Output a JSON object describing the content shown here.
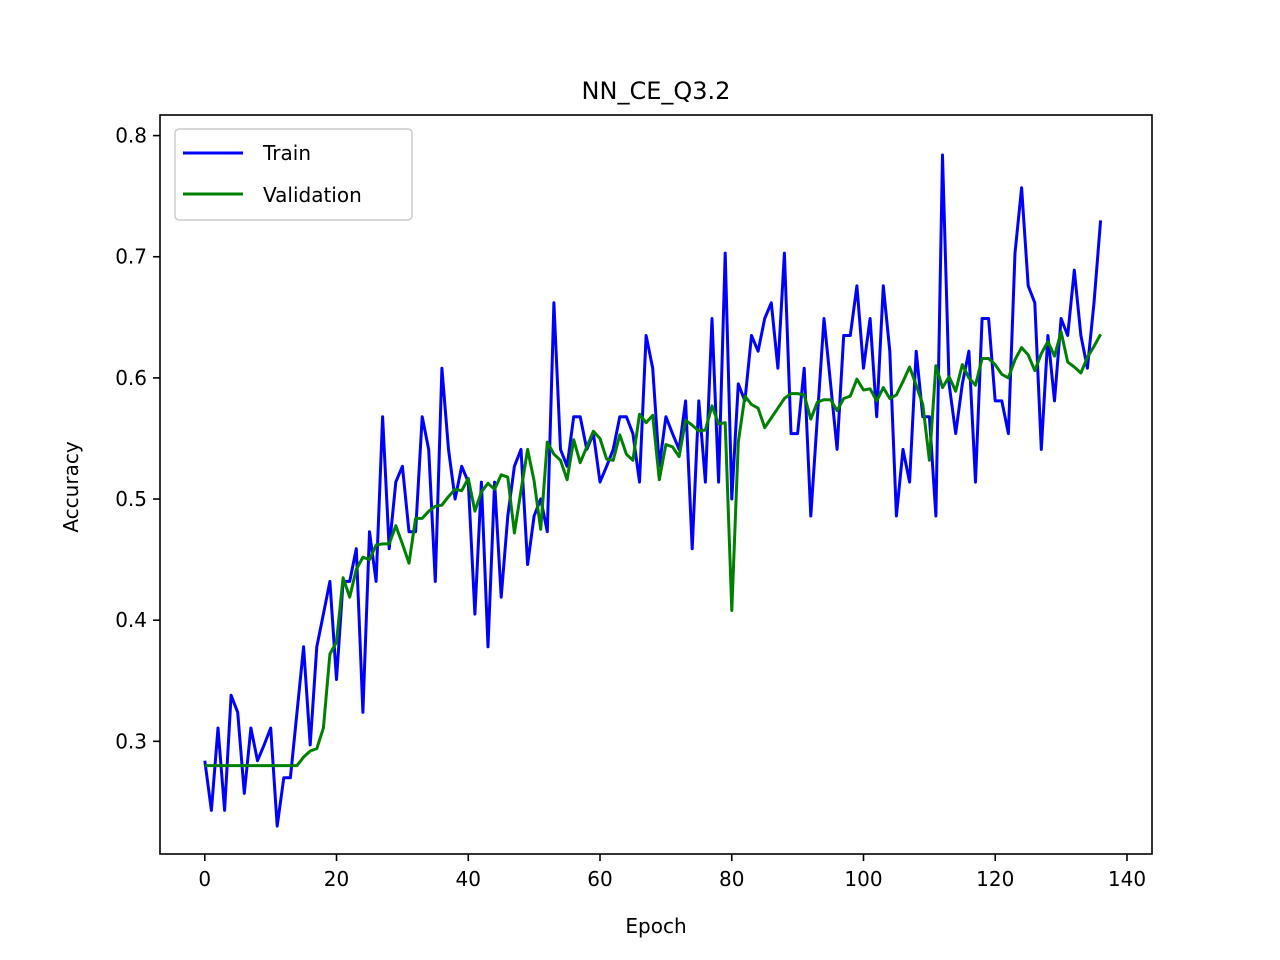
{
  "chart_data": {
    "type": "line",
    "title": "NN_CE_Q3.2",
    "xlabel": "Epoch",
    "ylabel": "Accuracy",
    "xlim": [
      -6.8,
      143.8
    ],
    "ylim": [
      0.207,
      0.817
    ],
    "xticks": [
      0,
      20,
      40,
      60,
      80,
      100,
      120,
      140
    ],
    "yticks": [
      0.3,
      0.4,
      0.5,
      0.6,
      0.7,
      0.8
    ],
    "xtick_labels": [
      "0",
      "20",
      "40",
      "60",
      "80",
      "100",
      "120",
      "140"
    ],
    "ytick_labels": [
      "0.3",
      "0.4",
      "0.5",
      "0.6",
      "0.7",
      "0.8"
    ],
    "grid": false,
    "legend_position": "upper left",
    "series": [
      {
        "name": "Train",
        "color": "#0000ff",
        "values": [
          0.284,
          0.243,
          0.311,
          0.243,
          0.338,
          0.324,
          0.257,
          0.311,
          0.284,
          0.297,
          0.311,
          0.23,
          0.27,
          0.27,
          0.324,
          0.378,
          0.297,
          0.378,
          0.405,
          0.432,
          0.351,
          0.432,
          0.432,
          0.459,
          0.324,
          0.473,
          0.432,
          0.568,
          0.459,
          0.514,
          0.527,
          0.473,
          0.473,
          0.568,
          0.541,
          0.432,
          0.608,
          0.541,
          0.5,
          0.527,
          0.514,
          0.405,
          0.514,
          0.378,
          0.514,
          0.419,
          0.486,
          0.527,
          0.541,
          0.446,
          0.486,
          0.5,
          0.473,
          0.662,
          0.541,
          0.527,
          0.568,
          0.568,
          0.541,
          0.554,
          0.514,
          0.527,
          0.541,
          0.568,
          0.568,
          0.554,
          0.514,
          0.635,
          0.608,
          0.527,
          0.568,
          0.554,
          0.541,
          0.581,
          0.459,
          0.581,
          0.514,
          0.649,
          0.514,
          0.703,
          0.5,
          0.595,
          0.581,
          0.635,
          0.622,
          0.649,
          0.662,
          0.608,
          0.703,
          0.554,
          0.554,
          0.608,
          0.486,
          0.568,
          0.649,
          0.595,
          0.541,
          0.635,
          0.635,
          0.676,
          0.608,
          0.649,
          0.568,
          0.676,
          0.622,
          0.486,
          0.541,
          0.514,
          0.622,
          0.568,
          0.568,
          0.486,
          0.784,
          0.595,
          0.554,
          0.595,
          0.622,
          0.514,
          0.649,
          0.649,
          0.581,
          0.581,
          0.554,
          0.703,
          0.757,
          0.676,
          0.662,
          0.541,
          0.635,
          0.581,
          0.649,
          0.635,
          0.689,
          0.635,
          0.608,
          0.662,
          0.73
        ]
      },
      {
        "name": "Validation",
        "color": "#008000",
        "values": [
          0.28,
          0.28,
          0.28,
          0.28,
          0.28,
          0.28,
          0.28,
          0.28,
          0.28,
          0.28,
          0.28,
          0.28,
          0.28,
          0.28,
          0.28,
          0.287,
          0.292,
          0.294,
          0.311,
          0.372,
          0.382,
          0.435,
          0.419,
          0.442,
          0.452,
          0.45,
          0.462,
          0.463,
          0.463,
          0.478,
          0.463,
          0.447,
          0.484,
          0.484,
          0.49,
          0.494,
          0.495,
          0.502,
          0.508,
          0.507,
          0.517,
          0.49,
          0.506,
          0.513,
          0.508,
          0.52,
          0.518,
          0.472,
          0.507,
          0.541,
          0.515,
          0.475,
          0.547,
          0.537,
          0.532,
          0.516,
          0.549,
          0.53,
          0.543,
          0.556,
          0.55,
          0.533,
          0.532,
          0.553,
          0.537,
          0.532,
          0.57,
          0.563,
          0.569,
          0.516,
          0.545,
          0.543,
          0.535,
          0.565,
          0.561,
          0.556,
          0.557,
          0.577,
          0.562,
          0.563,
          0.408,
          0.547,
          0.585,
          0.578,
          0.575,
          0.559,
          0.567,
          0.575,
          0.583,
          0.587,
          0.587,
          0.586,
          0.566,
          0.58,
          0.582,
          0.582,
          0.573,
          0.583,
          0.585,
          0.599,
          0.59,
          0.591,
          0.581,
          0.592,
          0.583,
          0.586,
          0.597,
          0.609,
          0.594,
          0.578,
          0.532,
          0.61,
          0.592,
          0.601,
          0.589,
          0.611,
          0.6,
          0.594,
          0.616,
          0.616,
          0.611,
          0.603,
          0.6,
          0.615,
          0.625,
          0.619,
          0.606,
          0.62,
          0.63,
          0.618,
          0.638,
          0.613,
          0.609,
          0.604,
          0.617,
          0.626,
          0.636
        ]
      }
    ]
  }
}
